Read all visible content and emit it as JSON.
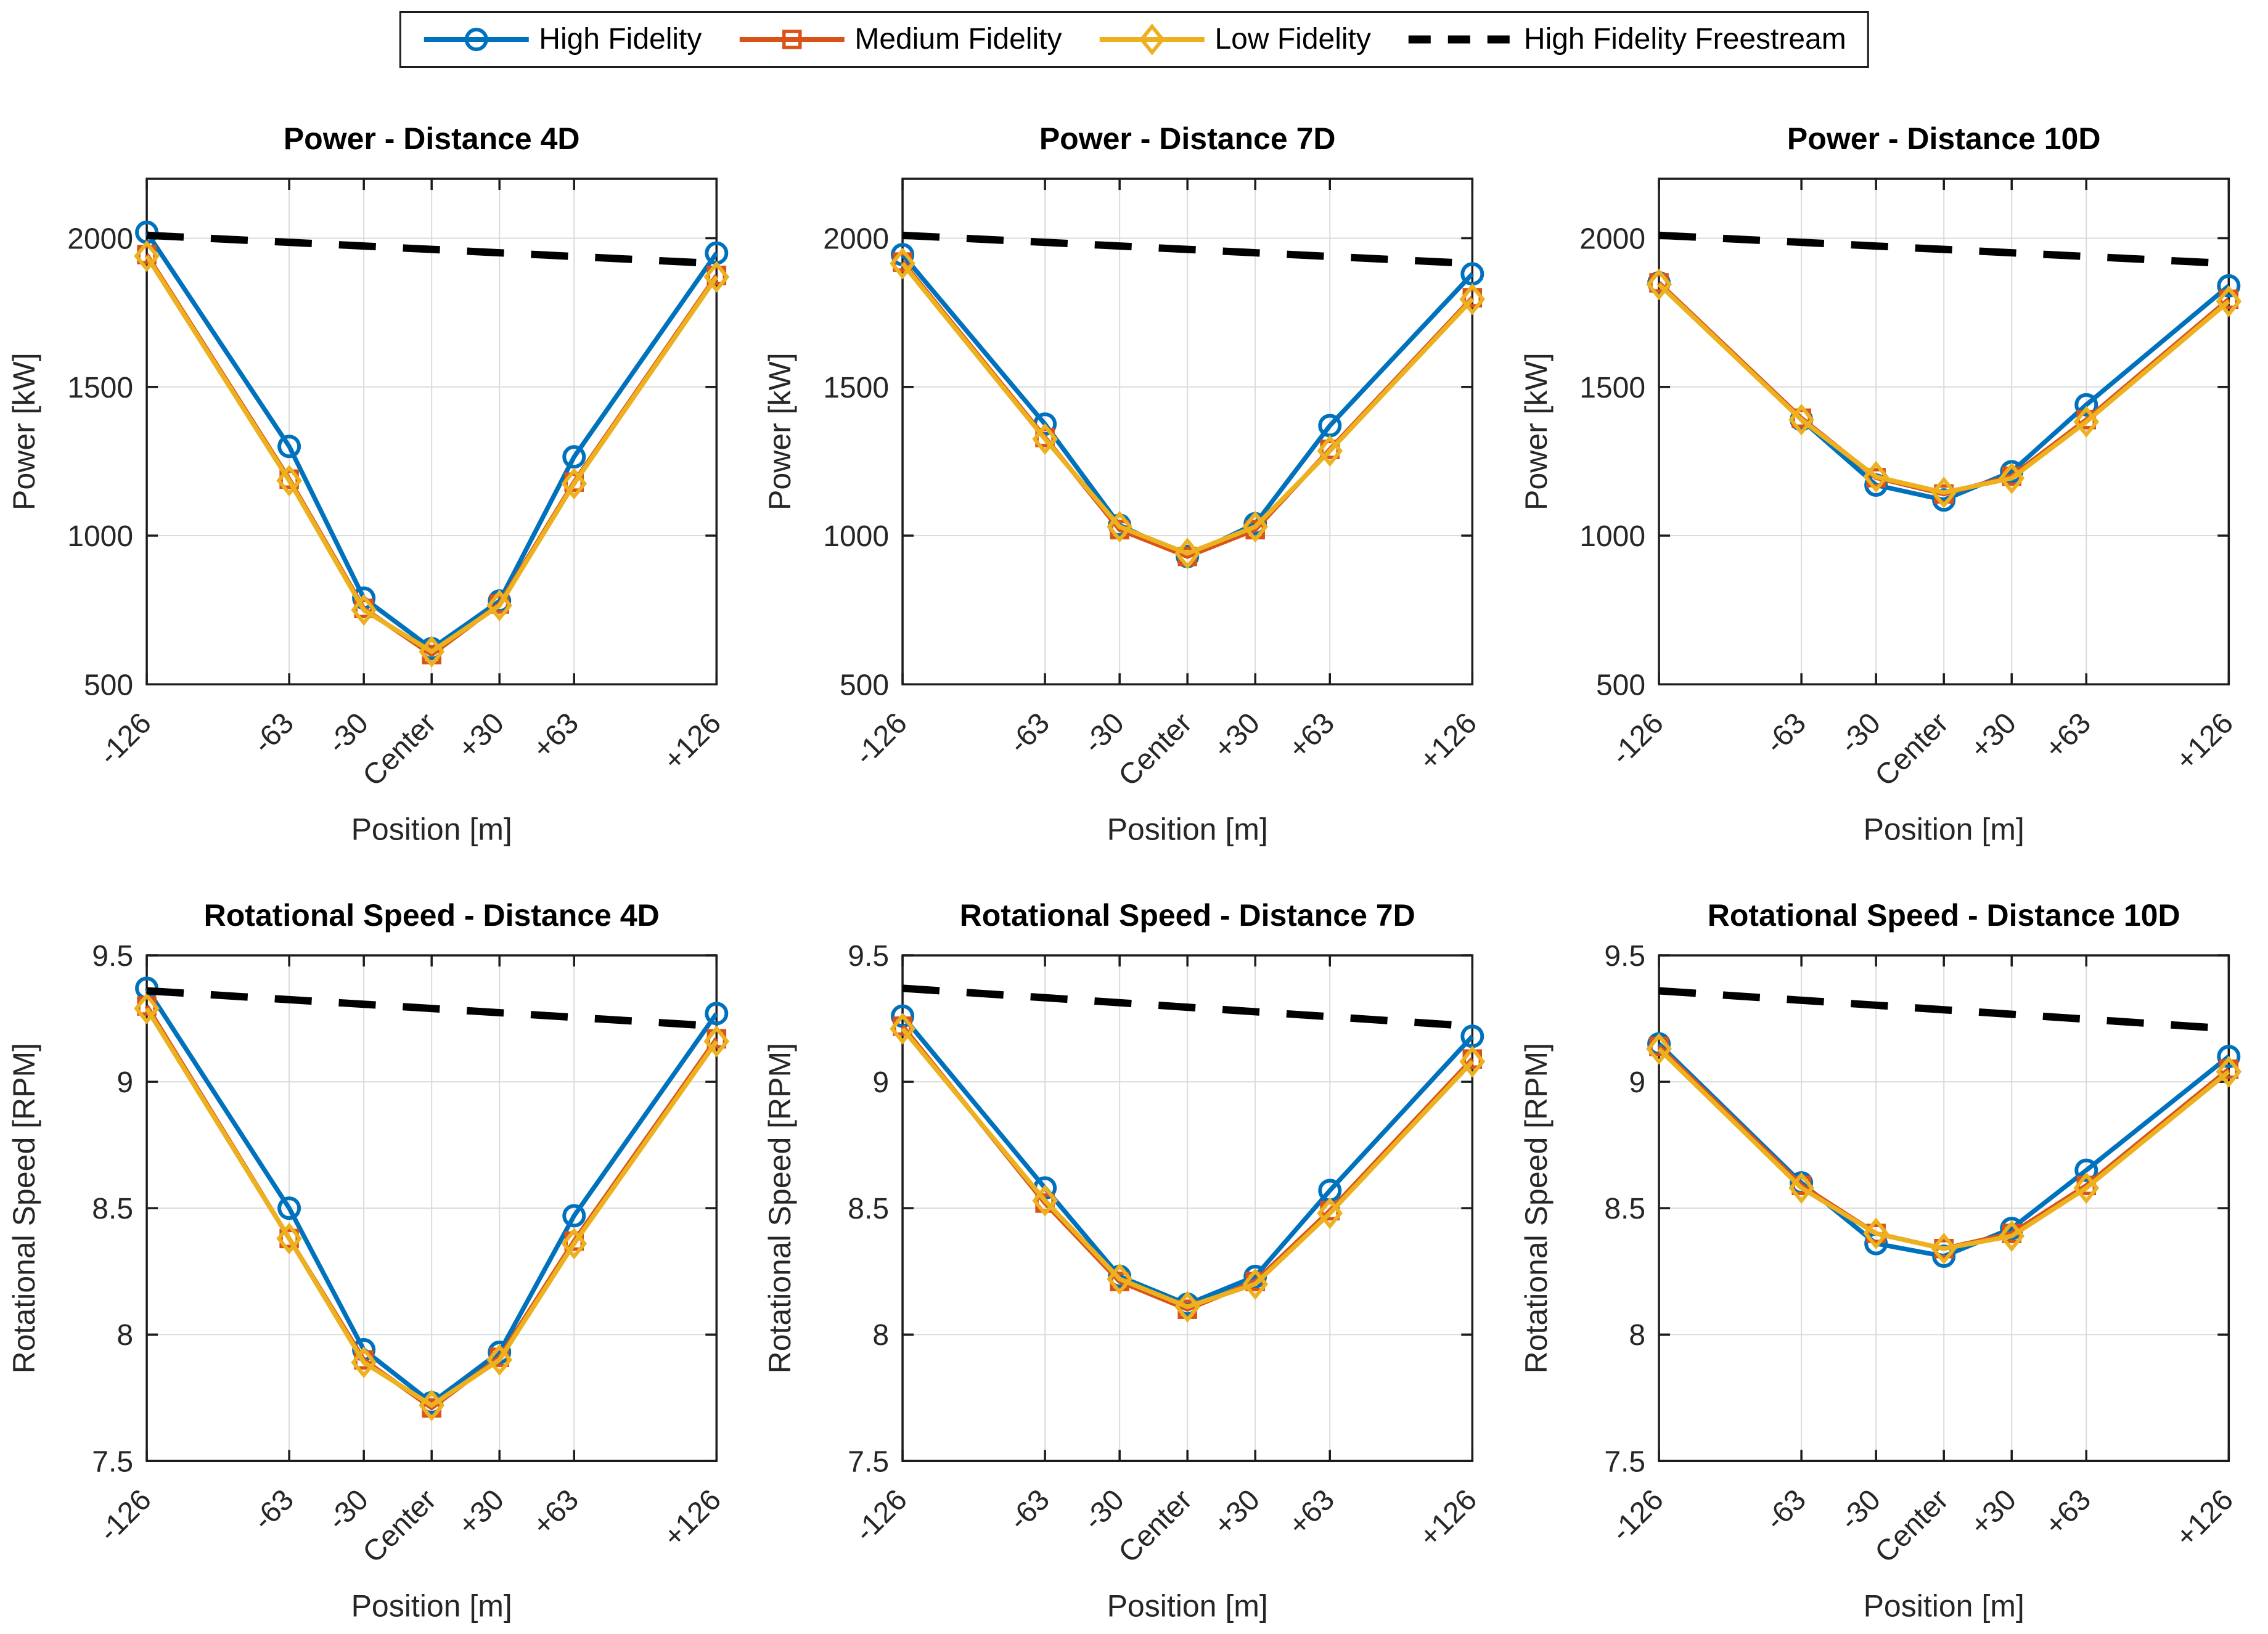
{
  "figure": {
    "background": "#ffffff",
    "axis_color": "#1c1c1c",
    "tick_label_color": "#262626",
    "grid_color": "#dbdbdb",
    "title_color": "#000000"
  },
  "legend": {
    "items": [
      {
        "label": "High Fidelity",
        "color": "#0072BD",
        "marker": "circle",
        "line": "solid"
      },
      {
        "label": "Medium Fidelity",
        "color": "#D95319",
        "marker": "square",
        "line": "solid"
      },
      {
        "label": "Low Fidelity",
        "color": "#EDB120",
        "marker": "diamond",
        "line": "solid"
      },
      {
        "label": "High Fidelity Freestream",
        "color": "#000000",
        "marker": "none",
        "line": "dashed"
      }
    ]
  },
  "chart_data": [
    {
      "type": "line",
      "title": "Power - Distance 4D",
      "xlabel": "Position [m]",
      "ylabel": "Power [kW]",
      "x": [
        -126,
        -63,
        -30,
        0,
        30,
        63,
        126
      ],
      "categories": [
        "-126",
        "-63",
        "-30",
        "Center",
        "+30",
        "+63",
        "+126"
      ],
      "xlim": [
        -126,
        126
      ],
      "ylim": [
        500,
        2200
      ],
      "yticks": [
        500,
        1000,
        1500,
        2000
      ],
      "yticklabels": [
        "500",
        "1000",
        "1500",
        "2000"
      ],
      "grid": true,
      "series": [
        {
          "name": "High Fidelity",
          "color": "#0072BD",
          "marker": "circle",
          "values": [
            2020,
            1300,
            790,
            620,
            780,
            1265,
            1950
          ]
        },
        {
          "name": "Medium Fidelity",
          "color": "#D95319",
          "marker": "square",
          "values": [
            1945,
            1190,
            755,
            600,
            770,
            1180,
            1875
          ]
        },
        {
          "name": "Low Fidelity",
          "color": "#EDB120",
          "marker": "diamond",
          "values": [
            1940,
            1185,
            750,
            610,
            765,
            1175,
            1870
          ]
        },
        {
          "name": "High Fidelity Freestream",
          "color": "#000000",
          "marker": "none",
          "dashed": true,
          "x": [
            -126,
            126
          ],
          "values": [
            2010,
            1915
          ]
        }
      ]
    },
    {
      "type": "line",
      "title": "Power - Distance 7D",
      "xlabel": "Position [m]",
      "ylabel": "Power [kW]",
      "x": [
        -126,
        -63,
        -30,
        0,
        30,
        63,
        126
      ],
      "categories": [
        "-126",
        "-63",
        "-30",
        "Center",
        "+30",
        "+63",
        "+126"
      ],
      "xlim": [
        -126,
        126
      ],
      "ylim": [
        500,
        2200
      ],
      "yticks": [
        500,
        1000,
        1500,
        2000
      ],
      "yticklabels": [
        "500",
        "1000",
        "1500",
        "2000"
      ],
      "grid": true,
      "series": [
        {
          "name": "High Fidelity",
          "color": "#0072BD",
          "marker": "circle",
          "values": [
            1945,
            1375,
            1035,
            930,
            1040,
            1370,
            1880
          ]
        },
        {
          "name": "Medium Fidelity",
          "color": "#D95319",
          "marker": "square",
          "values": [
            1920,
            1330,
            1020,
            930,
            1020,
            1290,
            1800
          ]
        },
        {
          "name": "Low Fidelity",
          "color": "#EDB120",
          "marker": "diamond",
          "values": [
            1915,
            1325,
            1030,
            940,
            1030,
            1285,
            1795
          ]
        },
        {
          "name": "High Fidelity Freestream",
          "color": "#000000",
          "marker": "none",
          "dashed": true,
          "x": [
            -126,
            126
          ],
          "values": [
            2010,
            1915
          ]
        }
      ]
    },
    {
      "type": "line",
      "title": "Power - Distance 10D",
      "xlabel": "Position [m]",
      "ylabel": "Power [kW]",
      "x": [
        -126,
        -63,
        -30,
        0,
        30,
        63,
        126
      ],
      "categories": [
        "-126",
        "-63",
        "-30",
        "Center",
        "+30",
        "+63",
        "+126"
      ],
      "xlim": [
        -126,
        126
      ],
      "ylim": [
        500,
        2200
      ],
      "yticks": [
        500,
        1000,
        1500,
        2000
      ],
      "yticklabels": [
        "500",
        "1000",
        "1500",
        "2000"
      ],
      "grid": true,
      "series": [
        {
          "name": "High Fidelity",
          "color": "#0072BD",
          "marker": "circle",
          "values": [
            1850,
            1390,
            1170,
            1120,
            1215,
            1440,
            1840
          ]
        },
        {
          "name": "Medium Fidelity",
          "color": "#D95319",
          "marker": "square",
          "values": [
            1850,
            1395,
            1195,
            1140,
            1200,
            1390,
            1795
          ]
        },
        {
          "name": "Low Fidelity",
          "color": "#EDB120",
          "marker": "diamond",
          "values": [
            1845,
            1390,
            1198,
            1145,
            1193,
            1383,
            1788
          ]
        },
        {
          "name": "High Fidelity Freestream",
          "color": "#000000",
          "marker": "none",
          "dashed": true,
          "x": [
            -126,
            126
          ],
          "values": [
            2010,
            1915
          ]
        }
      ]
    },
    {
      "type": "line",
      "title": "Rotational Speed - Distance 4D",
      "xlabel": "Position [m]",
      "ylabel": "Rotational Speed [RPM]",
      "x": [
        -126,
        -63,
        -30,
        0,
        30,
        63,
        126
      ],
      "categories": [
        "-126",
        "-63",
        "-30",
        "Center",
        "+30",
        "+63",
        "+126"
      ],
      "xlim": [
        -126,
        126
      ],
      "ylim": [
        7.5,
        9.5
      ],
      "yticks": [
        7.5,
        8,
        8.5,
        9,
        9.5
      ],
      "yticklabels": [
        "7.5",
        "8",
        "8.5",
        "9",
        "9.5"
      ],
      "grid": true,
      "series": [
        {
          "name": "High Fidelity",
          "color": "#0072BD",
          "marker": "circle",
          "values": [
            9.37,
            8.5,
            7.94,
            7.73,
            7.93,
            8.47,
            9.27
          ]
        },
        {
          "name": "Medium Fidelity",
          "color": "#D95319",
          "marker": "square",
          "values": [
            9.3,
            8.38,
            7.9,
            7.71,
            7.91,
            8.37,
            9.17
          ]
        },
        {
          "name": "Low Fidelity",
          "color": "#EDB120",
          "marker": "diamond",
          "values": [
            9.29,
            8.38,
            7.89,
            7.72,
            7.9,
            8.36,
            9.16
          ]
        },
        {
          "name": "High Fidelity Freestream",
          "color": "#000000",
          "marker": "none",
          "dashed": true,
          "x": [
            -126,
            126
          ],
          "values": [
            9.36,
            9.22
          ]
        }
      ]
    },
    {
      "type": "line",
      "title": "Rotational Speed - Distance 7D",
      "xlabel": "Position [m]",
      "ylabel": "Rotational Speed [RPM]",
      "x": [
        -126,
        -63,
        -30,
        0,
        30,
        63,
        126
      ],
      "categories": [
        "-126",
        "-63",
        "-30",
        "Center",
        "+30",
        "+63",
        "+126"
      ],
      "xlim": [
        -126,
        126
      ],
      "ylim": [
        7.5,
        9.5
      ],
      "yticks": [
        7.5,
        8,
        8.5,
        9,
        9.5
      ],
      "yticklabels": [
        "7.5",
        "8",
        "8.5",
        "9",
        "9.5"
      ],
      "grid": true,
      "series": [
        {
          "name": "High Fidelity",
          "color": "#0072BD",
          "marker": "circle",
          "values": [
            9.26,
            8.58,
            8.23,
            8.12,
            8.23,
            8.57,
            9.18
          ]
        },
        {
          "name": "Medium Fidelity",
          "color": "#D95319",
          "marker": "square",
          "values": [
            9.22,
            8.52,
            8.21,
            8.1,
            8.21,
            8.49,
            9.09
          ]
        },
        {
          "name": "Low Fidelity",
          "color": "#EDB120",
          "marker": "diamond",
          "values": [
            9.21,
            8.53,
            8.22,
            8.11,
            8.2,
            8.48,
            9.08
          ]
        },
        {
          "name": "High Fidelity Freestream",
          "color": "#000000",
          "marker": "none",
          "dashed": true,
          "x": [
            -126,
            126
          ],
          "values": [
            9.37,
            9.22
          ]
        }
      ]
    },
    {
      "type": "line",
      "title": "Rotational Speed - Distance 10D",
      "xlabel": "Position [m]",
      "ylabel": "Rotational Speed [RPM]",
      "x": [
        -126,
        -63,
        -30,
        0,
        30,
        63,
        126
      ],
      "categories": [
        "-126",
        "-63",
        "-30",
        "Center",
        "+30",
        "+63",
        "+126"
      ],
      "xlim": [
        -126,
        126
      ],
      "ylim": [
        7.5,
        9.5
      ],
      "yticks": [
        7.5,
        8,
        8.5,
        9,
        9.5
      ],
      "yticklabels": [
        "7.5",
        "8",
        "8.5",
        "9",
        "9.5"
      ],
      "grid": true,
      "series": [
        {
          "name": "High Fidelity",
          "color": "#0072BD",
          "marker": "circle",
          "values": [
            9.15,
            8.6,
            8.36,
            8.31,
            8.42,
            8.65,
            9.1
          ]
        },
        {
          "name": "Medium Fidelity",
          "color": "#D95319",
          "marker": "square",
          "values": [
            9.14,
            8.59,
            8.4,
            8.34,
            8.4,
            8.59,
            9.05
          ]
        },
        {
          "name": "Low Fidelity",
          "color": "#EDB120",
          "marker": "diamond",
          "values": [
            9.13,
            8.58,
            8.4,
            8.34,
            8.39,
            8.58,
            9.04
          ]
        },
        {
          "name": "High Fidelity Freestream",
          "color": "#000000",
          "marker": "none",
          "dashed": true,
          "x": [
            -126,
            126
          ],
          "values": [
            9.36,
            9.21
          ]
        }
      ]
    }
  ]
}
